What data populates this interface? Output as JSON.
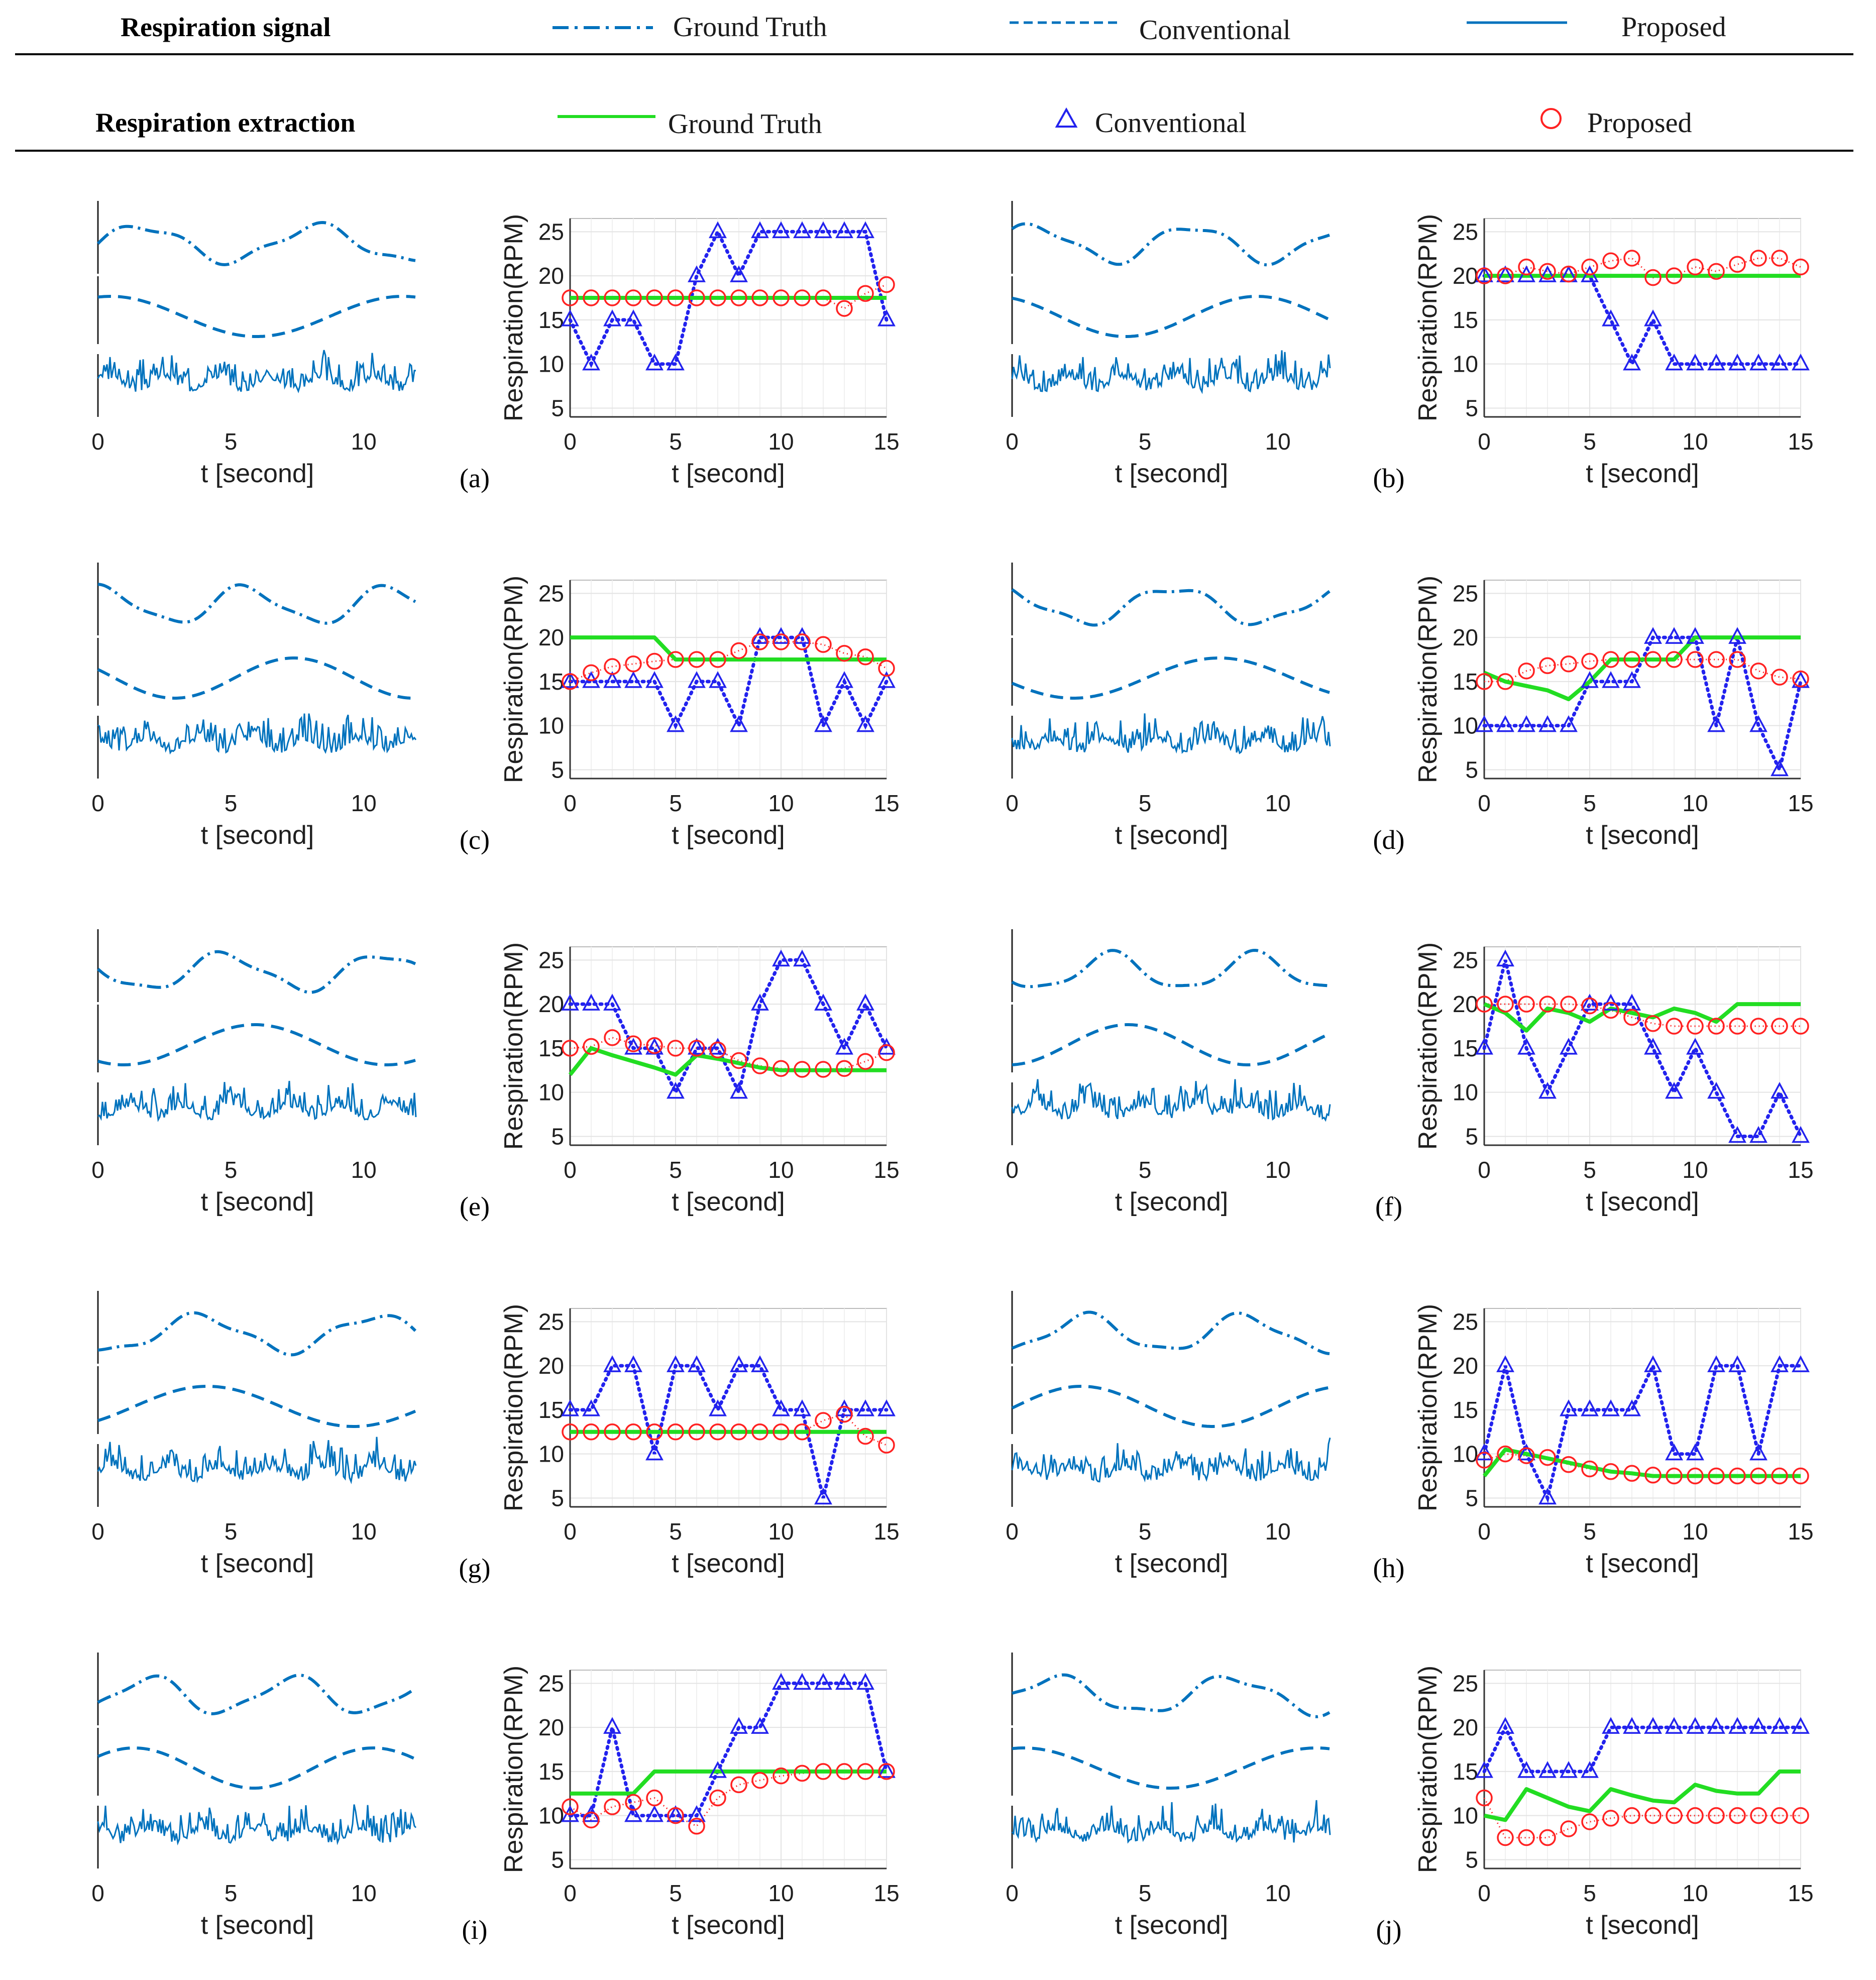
{
  "legend": {
    "signal_row": {
      "title": "Respiration signal",
      "items": [
        {
          "label": "Ground Truth",
          "style": "dash-dot",
          "color": "#0072BD"
        },
        {
          "label": "Conventional",
          "style": "dashed",
          "color": "#0072BD"
        },
        {
          "label": "Proposed",
          "style": "solid",
          "color": "#0072BD"
        }
      ]
    },
    "extraction_row": {
      "title": "Respiration extraction",
      "items": [
        {
          "label": "Ground Truth",
          "marker": "green-line",
          "color": "#22DD22"
        },
        {
          "label": "Conventional",
          "marker": "triangle",
          "color": "#2222EE"
        },
        {
          "label": "Proposed",
          "marker": "circle",
          "color": "#FF2222"
        }
      ]
    }
  },
  "colors": {
    "signal": "#0072BD",
    "gt": "#22DD22",
    "conv": "#2222EE",
    "prop": "#FF2222",
    "grid": "#E3E3E3"
  },
  "chart_data": [
    {
      "panel": "(a)",
      "type": "line",
      "signal_xlabel": "t [second]",
      "signal_xticks": [
        0,
        5,
        10
      ],
      "signal_xlim": [
        0,
        12
      ],
      "xlabel": "t [second]",
      "ylabel": "Respiration(RPM)",
      "xlim": [
        0,
        15
      ],
      "ylim": [
        4,
        26.5
      ],
      "xticks": [
        0,
        5,
        10,
        15
      ],
      "yticks": [
        5,
        10,
        15,
        20,
        25
      ],
      "x": [
        0,
        1,
        2,
        3,
        4,
        5,
        6,
        7,
        8,
        9,
        10,
        11,
        12,
        13,
        14,
        15
      ],
      "series": [
        {
          "name": "Ground Truth",
          "values": [
            17.5,
            17.5,
            17.5,
            17.5,
            17.5,
            17.5,
            17.5,
            17.5,
            17.5,
            17.5,
            17.5,
            17.5,
            17.5,
            17.5,
            17.5,
            17.5
          ]
        },
        {
          "name": "Conventional",
          "values": [
            15,
            10,
            15,
            15,
            10,
            10,
            20,
            25,
            20,
            25,
            25,
            25,
            25,
            25,
            25,
            15
          ]
        },
        {
          "name": "Proposed",
          "values": [
            17.5,
            17.5,
            17.5,
            17.5,
            17.5,
            17.5,
            17.5,
            17.5,
            17.5,
            17.5,
            17.5,
            17.5,
            17.5,
            16.3,
            18,
            19
          ]
        }
      ]
    },
    {
      "panel": "(b)",
      "type": "line",
      "signal_xlabel": "t [second]",
      "signal_xticks": [
        0,
        5,
        10
      ],
      "signal_xlim": [
        0,
        12
      ],
      "xlabel": "t [second]",
      "ylabel": "Respiration(RPM)",
      "xlim": [
        0,
        15
      ],
      "ylim": [
        4,
        26.5
      ],
      "xticks": [
        0,
        5,
        10,
        15
      ],
      "yticks": [
        5,
        10,
        15,
        20,
        25
      ],
      "x": [
        0,
        1,
        2,
        3,
        4,
        5,
        6,
        7,
        8,
        9,
        10,
        11,
        12,
        13,
        14,
        15
      ],
      "series": [
        {
          "name": "Ground Truth",
          "values": [
            20,
            20,
            20,
            20,
            20,
            20,
            20,
            20,
            20,
            20,
            20,
            20,
            20,
            20,
            20,
            20
          ]
        },
        {
          "name": "Conventional",
          "values": [
            20,
            20,
            20,
            20,
            20,
            20,
            15,
            10,
            15,
            10,
            10,
            10,
            10,
            10,
            10,
            10
          ]
        },
        {
          "name": "Proposed",
          "values": [
            20,
            20,
            21,
            20.5,
            20.2,
            21,
            21.7,
            22,
            19.8,
            20,
            21,
            20.5,
            21.3,
            22,
            22,
            21
          ]
        }
      ]
    },
    {
      "panel": "(c)",
      "type": "line",
      "signal_xlabel": "t [second]",
      "signal_xticks": [
        0,
        5,
        10
      ],
      "signal_xlim": [
        0,
        12
      ],
      "xlabel": "t [second]",
      "ylabel": "Respiration(RPM)",
      "xlim": [
        0,
        15
      ],
      "ylim": [
        4,
        26.5
      ],
      "xticks": [
        0,
        5,
        10,
        15
      ],
      "yticks": [
        5,
        10,
        15,
        20,
        25
      ],
      "x": [
        0,
        1,
        2,
        3,
        4,
        5,
        6,
        7,
        8,
        9,
        10,
        11,
        12,
        13,
        14,
        15
      ],
      "series": [
        {
          "name": "Ground Truth",
          "values": [
            20,
            20,
            20,
            20,
            20,
            17.5,
            17.5,
            17.5,
            17.5,
            17.5,
            17.5,
            17.5,
            17.5,
            17.5,
            17.5,
            17.5
          ]
        },
        {
          "name": "Conventional",
          "values": [
            15,
            15,
            15,
            15,
            15,
            10,
            15,
            15,
            10,
            20,
            20,
            20,
            10,
            15,
            10,
            15
          ]
        },
        {
          "name": "Proposed",
          "values": [
            15,
            16,
            16.7,
            17,
            17.3,
            17.5,
            17.5,
            17.5,
            18.5,
            19.5,
            19.5,
            19.5,
            19.2,
            18.2,
            17.8,
            16.5
          ]
        }
      ]
    },
    {
      "panel": "(d)",
      "type": "line",
      "signal_xlabel": "t [second]",
      "signal_xticks": [
        0,
        5,
        10
      ],
      "signal_xlim": [
        0,
        12
      ],
      "xlabel": "t [second]",
      "ylabel": "Respiration(RPM)",
      "xlim": [
        0,
        15
      ],
      "ylim": [
        4,
        26.5
      ],
      "xticks": [
        0,
        5,
        10,
        15
      ],
      "yticks": [
        5,
        10,
        15,
        20,
        25
      ],
      "x": [
        0,
        1,
        2,
        3,
        4,
        5,
        6,
        7,
        8,
        9,
        10,
        11,
        12,
        13,
        14,
        15
      ],
      "series": [
        {
          "name": "Ground Truth",
          "values": [
            16,
            15,
            14.5,
            14,
            13,
            15,
            17.5,
            17.5,
            17.5,
            17.5,
            20,
            20,
            20,
            20,
            20,
            20
          ]
        },
        {
          "name": "Conventional",
          "values": [
            10,
            10,
            10,
            10,
            10,
            15,
            15,
            15,
            20,
            20,
            20,
            10,
            20,
            10,
            5,
            15
          ]
        },
        {
          "name": "Proposed",
          "values": [
            15,
            15,
            16.2,
            16.8,
            17,
            17.3,
            17.5,
            17.5,
            17.5,
            17.5,
            17.5,
            17.5,
            17.5,
            16.2,
            15.5,
            15.3
          ]
        }
      ]
    },
    {
      "panel": "(e)",
      "type": "line",
      "signal_xlabel": "t [second]",
      "signal_xticks": [
        0,
        5,
        10
      ],
      "signal_xlim": [
        0,
        12
      ],
      "xlabel": "t [second]",
      "ylabel": "Respiration(RPM)",
      "xlim": [
        0,
        15
      ],
      "ylim": [
        4,
        26.5
      ],
      "xticks": [
        0,
        5,
        10,
        15
      ],
      "yticks": [
        5,
        10,
        15,
        20,
        25
      ],
      "x": [
        0,
        1,
        2,
        3,
        4,
        5,
        6,
        7,
        8,
        9,
        10,
        11,
        12,
        13,
        14,
        15
      ],
      "series": [
        {
          "name": "Ground Truth",
          "values": [
            12,
            15,
            14.2,
            13.5,
            12.8,
            12,
            14.2,
            13.8,
            13.3,
            12.8,
            12.5,
            12.5,
            12.5,
            12.5,
            12.5,
            12.5
          ]
        },
        {
          "name": "Conventional",
          "values": [
            20,
            20,
            20,
            15,
            15,
            10,
            15,
            15,
            10,
            20,
            25,
            25,
            20,
            15,
            20,
            15
          ]
        },
        {
          "name": "Proposed",
          "values": [
            15,
            15.2,
            16.2,
            15.5,
            15.3,
            15,
            15,
            14.8,
            13.6,
            13,
            12.7,
            12.6,
            12.6,
            12.7,
            13.5,
            14.5
          ]
        }
      ]
    },
    {
      "panel": "(f)",
      "type": "line",
      "signal_xlabel": "t [second]",
      "signal_xticks": [
        0,
        5,
        10
      ],
      "signal_xlim": [
        0,
        12
      ],
      "xlabel": "t [second]",
      "ylabel": "Respiration(RPM)",
      "xlim": [
        0,
        15
      ],
      "ylim": [
        4,
        26.5
      ],
      "xticks": [
        0,
        5,
        10,
        15
      ],
      "yticks": [
        5,
        10,
        15,
        20,
        25
      ],
      "x": [
        0,
        1,
        2,
        3,
        4,
        5,
        6,
        7,
        8,
        9,
        10,
        11,
        12,
        13,
        14,
        15
      ],
      "series": [
        {
          "name": "Ground Truth",
          "values": [
            20,
            19,
            17,
            19.5,
            19,
            18,
            19.5,
            19,
            18.5,
            19.5,
            19,
            18,
            20,
            20,
            20,
            20
          ]
        },
        {
          "name": "Conventional",
          "values": [
            15,
            25,
            15,
            10,
            15,
            20,
            20,
            20,
            15,
            10,
            15,
            10,
            5,
            5,
            10,
            5
          ]
        },
        {
          "name": "Proposed",
          "values": [
            20,
            20,
            20,
            20,
            20,
            19.8,
            19.3,
            18.5,
            17.8,
            17.5,
            17.5,
            17.5,
            17.5,
            17.5,
            17.5,
            17.5
          ]
        }
      ]
    },
    {
      "panel": "(g)",
      "type": "line",
      "signal_xlabel": "t [second]",
      "signal_xticks": [
        0,
        5,
        10
      ],
      "signal_xlim": [
        0,
        12
      ],
      "xlabel": "t [second]",
      "ylabel": "Respiration(RPM)",
      "xlim": [
        0,
        15
      ],
      "ylim": [
        4,
        26.5
      ],
      "xticks": [
        0,
        5,
        10,
        15
      ],
      "yticks": [
        5,
        10,
        15,
        20,
        25
      ],
      "x": [
        0,
        1,
        2,
        3,
        4,
        5,
        6,
        7,
        8,
        9,
        10,
        11,
        12,
        13,
        14,
        15
      ],
      "series": [
        {
          "name": "Ground Truth",
          "values": [
            12.5,
            12.5,
            12.5,
            12.5,
            12.5,
            12.5,
            12.5,
            12.5,
            12.5,
            12.5,
            12.5,
            12.5,
            12.5,
            12.5,
            12.5,
            12.5
          ]
        },
        {
          "name": "Conventional",
          "values": [
            15,
            15,
            20,
            20,
            10,
            20,
            20,
            15,
            20,
            20,
            15,
            15,
            5,
            15,
            15,
            15
          ]
        },
        {
          "name": "Proposed",
          "values": [
            12.5,
            12.5,
            12.5,
            12.5,
            12.5,
            12.5,
            12.5,
            12.5,
            12.5,
            12.5,
            12.5,
            12.5,
            13.8,
            14.5,
            12,
            11
          ]
        }
      ]
    },
    {
      "panel": "(h)",
      "type": "line",
      "signal_xlabel": "t [second]",
      "signal_xticks": [
        0,
        5,
        10
      ],
      "signal_xlim": [
        0,
        12
      ],
      "xlabel": "t [second]",
      "ylabel": "Respiration(RPM)",
      "xlim": [
        0,
        15
      ],
      "ylim": [
        4,
        26.5
      ],
      "xticks": [
        0,
        5,
        10,
        15
      ],
      "yticks": [
        5,
        10,
        15,
        20,
        25
      ],
      "x": [
        0,
        1,
        2,
        3,
        4,
        5,
        6,
        7,
        8,
        9,
        10,
        11,
        12,
        13,
        14,
        15
      ],
      "series": [
        {
          "name": "Ground Truth",
          "values": [
            7.5,
            10.5,
            10,
            9.5,
            9,
            8.5,
            8,
            7.8,
            7.5,
            7.5,
            7.5,
            7.5,
            7.5,
            7.5,
            7.5,
            7.5
          ]
        },
        {
          "name": "Conventional",
          "values": [
            10,
            20,
            10,
            5,
            15,
            15,
            15,
            15,
            20,
            10,
            10,
            20,
            20,
            10,
            20,
            20
          ]
        },
        {
          "name": "Proposed",
          "values": [
            9.3,
            10,
            9.8,
            9.6,
            8.8,
            8.3,
            8,
            7.8,
            7.6,
            7.5,
            7.5,
            7.5,
            7.5,
            7.5,
            7.5,
            7.5
          ]
        }
      ]
    },
    {
      "panel": "(i)",
      "type": "line",
      "signal_xlabel": "t [second]",
      "signal_xticks": [
        0,
        5,
        10
      ],
      "signal_xlim": [
        0,
        12
      ],
      "xlabel": "t [second]",
      "ylabel": "Respiration(RPM)",
      "xlim": [
        0,
        15
      ],
      "ylim": [
        4,
        26.5
      ],
      "xticks": [
        0,
        5,
        10,
        15
      ],
      "yticks": [
        5,
        10,
        15,
        20,
        25
      ],
      "x": [
        0,
        1,
        2,
        3,
        4,
        5,
        6,
        7,
        8,
        9,
        10,
        11,
        12,
        13,
        14,
        15
      ],
      "series": [
        {
          "name": "Ground Truth",
          "values": [
            12.5,
            12.5,
            12.5,
            12.5,
            15,
            15,
            15,
            15,
            15,
            15,
            15,
            15,
            15,
            15,
            15,
            15
          ]
        },
        {
          "name": "Conventional",
          "values": [
            10,
            10,
            20,
            10,
            10,
            10,
            10,
            15,
            20,
            20,
            25,
            25,
            25,
            25,
            25,
            15
          ]
        },
        {
          "name": "Proposed",
          "values": [
            11,
            9.5,
            11,
            11.5,
            12,
            10,
            8.8,
            12,
            13.5,
            14,
            14.5,
            14.8,
            15,
            15,
            15,
            15
          ]
        }
      ]
    },
    {
      "panel": "(j)",
      "type": "line",
      "signal_xlabel": "t [second]",
      "signal_xticks": [
        0,
        5,
        10
      ],
      "signal_xlim": [
        0,
        12
      ],
      "xlabel": "t [second]",
      "ylabel": "Respiration(RPM)",
      "xlim": [
        0,
        15
      ],
      "ylim": [
        4,
        26.5
      ],
      "xticks": [
        0,
        5,
        10,
        15
      ],
      "yticks": [
        5,
        10,
        15,
        20,
        25
      ],
      "x": [
        0,
        1,
        2,
        3,
        4,
        5,
        6,
        7,
        8,
        9,
        10,
        11,
        12,
        13,
        14,
        15
      ],
      "series": [
        {
          "name": "Ground Truth",
          "values": [
            10,
            9.5,
            13,
            12,
            11,
            10.5,
            13,
            12.3,
            11.7,
            11.5,
            13.5,
            12.8,
            12.5,
            12.5,
            15,
            15
          ]
        },
        {
          "name": "Conventional",
          "values": [
            15,
            20,
            15,
            15,
            15,
            15,
            20,
            20,
            20,
            20,
            20,
            20,
            20,
            20,
            20,
            20
          ]
        },
        {
          "name": "Proposed",
          "values": [
            12,
            7.5,
            7.5,
            7.5,
            8.5,
            9.3,
            9.7,
            10,
            10,
            10,
            10,
            10,
            10,
            10,
            10,
            10
          ]
        }
      ]
    }
  ]
}
